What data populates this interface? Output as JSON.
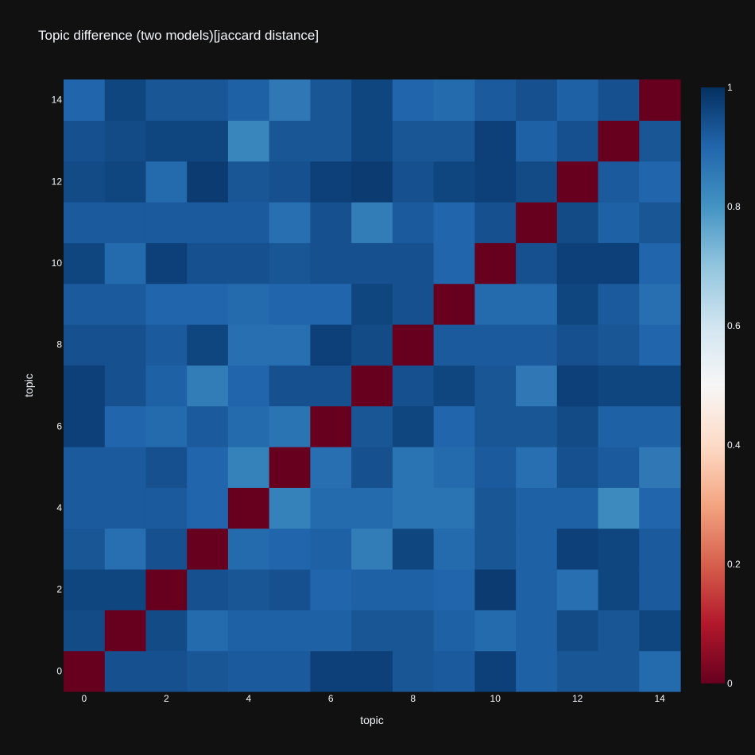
{
  "chart_data": {
    "type": "heatmap",
    "title": "Topic difference (two models)[jaccard distance]",
    "xlabel": "topic",
    "ylabel": "topic",
    "x": [
      0,
      1,
      2,
      3,
      4,
      5,
      6,
      7,
      8,
      9,
      10,
      11,
      12,
      13,
      14
    ],
    "y": [
      0,
      1,
      2,
      3,
      4,
      5,
      6,
      7,
      8,
      9,
      10,
      11,
      12,
      13,
      14
    ],
    "x_ticks": [
      "0",
      "2",
      "4",
      "6",
      "8",
      "10",
      "12",
      "14"
    ],
    "y_ticks": [
      "0",
      "2",
      "4",
      "6",
      "8",
      "10",
      "12",
      "14"
    ],
    "z_range": [
      0,
      1
    ],
    "colorbar_ticks": [
      "0",
      "0.2",
      "0.4",
      "0.6",
      "0.8",
      "1"
    ],
    "colorscale": "RdBu",
    "colors": {
      "background": "#111111",
      "low": "#67001f",
      "mid": "#f7f7f7",
      "high": "#053061",
      "text": "#f2f5fa"
    },
    "z": [
      [
        0.0,
        0.94,
        0.94,
        0.93,
        0.92,
        0.92,
        0.97,
        0.97,
        0.93,
        0.92,
        0.97,
        0.91,
        0.93,
        0.93,
        0.89
      ],
      [
        0.95,
        0.0,
        0.95,
        0.89,
        0.91,
        0.91,
        0.91,
        0.93,
        0.93,
        0.91,
        0.89,
        0.91,
        0.95,
        0.93,
        0.96
      ],
      [
        0.96,
        0.96,
        0.0,
        0.94,
        0.93,
        0.94,
        0.9,
        0.91,
        0.91,
        0.9,
        0.98,
        0.91,
        0.88,
        0.96,
        0.92
      ],
      [
        0.93,
        0.88,
        0.94,
        0.0,
        0.89,
        0.9,
        0.91,
        0.85,
        0.96,
        0.89,
        0.93,
        0.91,
        0.97,
        0.96,
        0.92
      ],
      [
        0.92,
        0.92,
        0.92,
        0.9,
        0.0,
        0.84,
        0.89,
        0.89,
        0.87,
        0.87,
        0.93,
        0.91,
        0.91,
        0.82,
        0.9
      ],
      [
        0.92,
        0.92,
        0.94,
        0.9,
        0.84,
        0.0,
        0.88,
        0.94,
        0.87,
        0.89,
        0.92,
        0.88,
        0.94,
        0.92,
        0.86
      ],
      [
        0.97,
        0.9,
        0.89,
        0.92,
        0.89,
        0.87,
        0.0,
        0.93,
        0.96,
        0.9,
        0.93,
        0.93,
        0.95,
        0.91,
        0.91
      ],
      [
        0.97,
        0.94,
        0.91,
        0.85,
        0.9,
        0.94,
        0.94,
        0.0,
        0.94,
        0.96,
        0.93,
        0.86,
        0.97,
        0.96,
        0.96
      ],
      [
        0.94,
        0.94,
        0.92,
        0.96,
        0.88,
        0.88,
        0.97,
        0.95,
        0.0,
        0.92,
        0.92,
        0.92,
        0.94,
        0.93,
        0.9
      ],
      [
        0.92,
        0.92,
        0.9,
        0.9,
        0.89,
        0.9,
        0.9,
        0.96,
        0.94,
        0.0,
        0.89,
        0.89,
        0.96,
        0.92,
        0.88
      ],
      [
        0.96,
        0.89,
        0.97,
        0.94,
        0.94,
        0.93,
        0.94,
        0.94,
        0.94,
        0.9,
        0.0,
        0.94,
        0.97,
        0.97,
        0.9
      ],
      [
        0.92,
        0.92,
        0.92,
        0.92,
        0.92,
        0.88,
        0.94,
        0.85,
        0.92,
        0.9,
        0.94,
        0.0,
        0.95,
        0.91,
        0.93
      ],
      [
        0.95,
        0.96,
        0.89,
        0.98,
        0.93,
        0.94,
        0.97,
        0.98,
        0.94,
        0.96,
        0.97,
        0.95,
        0.0,
        0.92,
        0.9
      ],
      [
        0.94,
        0.95,
        0.96,
        0.96,
        0.83,
        0.93,
        0.93,
        0.96,
        0.93,
        0.93,
        0.97,
        0.91,
        0.94,
        0.0,
        0.93
      ],
      [
        0.9,
        0.96,
        0.93,
        0.93,
        0.91,
        0.86,
        0.93,
        0.96,
        0.9,
        0.89,
        0.92,
        0.94,
        0.91,
        0.94,
        0.0
      ]
    ]
  }
}
